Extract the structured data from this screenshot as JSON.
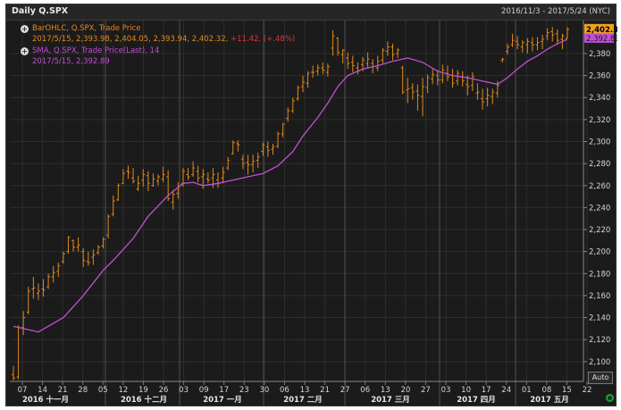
{
  "window": {
    "title": "Daily Q.SPX",
    "date_range": "2016/11/3 - 2017/5/24 (NYC)"
  },
  "legend": {
    "ohlc_title": "BarOHLC, Q.SPX, Trade Price",
    "ohlc_values": "2017/5/15, 2,393.98, 2,404.05, 2,393.94, 2,402.32,",
    "ohlc_change": "+11.42, (+.48%)",
    "sma_title": "SMA, Q.SPX, Trade Price(Last),  14",
    "sma_values": "2017/5/15, 2,392.89"
  },
  "controls": {
    "auto_label": "Auto"
  },
  "colors": {
    "background": "#1b1b1b",
    "bar": "#e08a1e",
    "sma": "#c24fd6",
    "grid": "#2e2e2e",
    "last_price_tag": "#f0a020",
    "sma_price_tag": "#c24fd6"
  },
  "chart_data": {
    "type": "ohlc",
    "title": "Daily Q.SPX",
    "ylim": [
      2082,
      2410
    ],
    "y_ticks": [
      2100,
      2120,
      2140,
      2160,
      2180,
      2200,
      2220,
      2240,
      2260,
      2280,
      2300,
      2320,
      2340,
      2360,
      2380
    ],
    "y_tick_labels": [
      "2,100",
      "2,120",
      "2,140",
      "2,160",
      "2,180",
      "2,200",
      "2,220",
      "2,240",
      "2,260",
      "2,280",
      "2,300",
      "2,320",
      "2,340",
      "2,360",
      "2,380"
    ],
    "x_tick_labels": [
      "07",
      "14",
      "21",
      "28",
      "05",
      "12",
      "19",
      "26",
      "03",
      "09",
      "17",
      "23",
      "30",
      "06",
      "13",
      "21",
      "27",
      "06",
      "13",
      "20",
      "27",
      "03",
      "10",
      "17",
      "24",
      "01",
      "08",
      "15",
      "22"
    ],
    "month_labels": [
      "2016 十一月",
      "2016 十二月",
      "2017 一月",
      "2017 二月",
      "2017 三月",
      "2017 四月",
      "2017 五月"
    ],
    "last_price_label": "2,402.32",
    "last_sma_label": "2,392.89",
    "series": [
      {
        "name": "BarOHLC, Q.SPX, Trade Price",
        "kind": "ohlc",
        "values": [
          [
            2088,
            2096,
            2083,
            2085
          ],
          [
            2086,
            2133,
            2084,
            2131
          ],
          [
            2131,
            2146,
            2124,
            2140
          ],
          [
            2145,
            2168,
            2143,
            2164
          ],
          [
            2166,
            2177,
            2157,
            2167
          ],
          [
            2162,
            2171,
            2156,
            2164
          ],
          [
            2166,
            2175,
            2159,
            2165
          ],
          [
            2168,
            2180,
            2166,
            2177
          ],
          [
            2177,
            2187,
            2172,
            2181
          ],
          [
            2182,
            2190,
            2177,
            2187
          ],
          [
            2191,
            2200,
            2189,
            2198
          ],
          [
            2200,
            2214,
            2198,
            2213
          ],
          [
            2210,
            2211,
            2200,
            2204
          ],
          [
            2204,
            2213,
            2200,
            2206
          ],
          [
            2200,
            2203,
            2186,
            2192
          ],
          [
            2191,
            2200,
            2187,
            2190
          ],
          [
            2195,
            2202,
            2188,
            2197
          ],
          [
            2199,
            2206,
            2197,
            2204
          ],
          [
            2205,
            2213,
            2203,
            2211
          ],
          [
            2215,
            2234,
            2212,
            2232
          ],
          [
            2234,
            2251,
            2232,
            2246
          ],
          [
            2247,
            2262,
            2246,
            2260
          ],
          [
            2262,
            2275,
            2261,
            2271
          ],
          [
            2273,
            2278,
            2266,
            2272
          ],
          [
            2267,
            2276,
            2262,
            2264
          ],
          [
            2257,
            2269,
            2255,
            2262
          ],
          [
            2265,
            2275,
            2259,
            2270
          ],
          [
            2269,
            2273,
            2255,
            2262
          ],
          [
            2260,
            2271,
            2259,
            2266
          ],
          [
            2264,
            2270,
            2260,
            2268
          ],
          [
            2266,
            2277,
            2263,
            2270
          ],
          [
            2268,
            2274,
            2246,
            2248
          ],
          [
            2245,
            2256,
            2238,
            2252
          ],
          [
            2253,
            2263,
            2248,
            2259
          ],
          [
            2262,
            2276,
            2259,
            2273
          ],
          [
            2270,
            2276,
            2265,
            2268
          ],
          [
            2270,
            2282,
            2268,
            2276
          ],
          [
            2273,
            2278,
            2263,
            2267
          ],
          [
            2268,
            2275,
            2257,
            2270
          ],
          [
            2266,
            2272,
            2262,
            2265
          ],
          [
            2267,
            2276,
            2258,
            2270
          ],
          [
            2265,
            2272,
            2258,
            2262
          ],
          [
            2267,
            2277,
            2262,
            2272
          ],
          [
            2276,
            2286,
            2274,
            2283
          ],
          [
            2289,
            2301,
            2288,
            2299
          ],
          [
            2298,
            2301,
            2291,
            2297
          ],
          [
            2284,
            2288,
            2275,
            2280
          ],
          [
            2281,
            2288,
            2270,
            2279
          ],
          [
            2279,
            2288,
            2272,
            2282
          ],
          [
            2283,
            2290,
            2276,
            2286
          ],
          [
            2291,
            2299,
            2287,
            2297
          ],
          [
            2295,
            2300,
            2286,
            2292
          ],
          [
            2293,
            2298,
            2288,
            2295
          ],
          [
            2296,
            2309,
            2294,
            2307
          ],
          [
            2307,
            2317,
            2304,
            2316
          ],
          [
            2321,
            2331,
            2318,
            2328
          ],
          [
            2328,
            2340,
            2326,
            2337
          ],
          [
            2339,
            2351,
            2337,
            2349
          ],
          [
            2350,
            2360,
            2345,
            2354
          ],
          [
            2353,
            2364,
            2349,
            2362
          ],
          [
            2363,
            2369,
            2358,
            2363
          ],
          [
            2364,
            2370,
            2360,
            2367
          ],
          [
            2367,
            2372,
            2361,
            2365
          ],
          [
            2363,
            2371,
            2359,
            2368
          ],
          [
            2385,
            2401,
            2378,
            2396
          ],
          [
            2394,
            2395,
            2378,
            2381
          ],
          [
            2379,
            2384,
            2371,
            2383
          ],
          [
            2376,
            2381,
            2366,
            2371
          ],
          [
            2372,
            2378,
            2363,
            2369
          ],
          [
            2367,
            2372,
            2361,
            2364
          ],
          [
            2370,
            2377,
            2364,
            2374
          ],
          [
            2371,
            2381,
            2367,
            2375
          ],
          [
            2371,
            2375,
            2362,
            2368
          ],
          [
            2367,
            2378,
            2364,
            2373
          ],
          [
            2374,
            2385,
            2371,
            2383
          ],
          [
            2382,
            2391,
            2378,
            2386
          ],
          [
            2386,
            2389,
            2374,
            2379
          ],
          [
            2380,
            2385,
            2376,
            2383
          ],
          [
            2367,
            2369,
            2343,
            2345
          ],
          [
            2347,
            2358,
            2335,
            2348
          ],
          [
            2349,
            2353,
            2338,
            2345
          ],
          [
            2346,
            2352,
            2328,
            2342
          ],
          [
            2341,
            2358,
            2323,
            2350
          ],
          [
            2349,
            2361,
            2344,
            2358
          ],
          [
            2357,
            2366,
            2352,
            2361
          ],
          [
            2360,
            2365,
            2351,
            2356
          ],
          [
            2356,
            2370,
            2353,
            2365
          ],
          [
            2362,
            2369,
            2355,
            2359
          ],
          [
            2360,
            2366,
            2349,
            2353
          ],
          [
            2355,
            2365,
            2351,
            2362
          ],
          [
            2359,
            2364,
            2350,
            2355
          ],
          [
            2352,
            2360,
            2342,
            2350
          ],
          [
            2351,
            2363,
            2346,
            2359
          ],
          [
            2344,
            2353,
            2338,
            2345
          ],
          [
            2339,
            2348,
            2329,
            2336
          ],
          [
            2339,
            2349,
            2332,
            2342
          ],
          [
            2341,
            2348,
            2334,
            2345
          ],
          [
            2344,
            2355,
            2340,
            2351
          ],
          [
            2374,
            2376,
            2372,
            2375
          ],
          [
            2382,
            2389,
            2379,
            2386
          ],
          [
            2388,
            2398,
            2386,
            2392
          ],
          [
            2391,
            2396,
            2384,
            2388
          ],
          [
            2386,
            2392,
            2381,
            2390
          ],
          [
            2388,
            2394,
            2380,
            2391
          ],
          [
            2390,
            2395,
            2382,
            2388
          ],
          [
            2388,
            2395,
            2383,
            2390
          ],
          [
            2391,
            2397,
            2384,
            2393
          ],
          [
            2396,
            2403,
            2392,
            2399
          ],
          [
            2400,
            2404,
            2391,
            2397
          ],
          [
            2398,
            2402,
            2388,
            2392
          ],
          [
            2393,
            2398,
            2384,
            2396
          ],
          [
            2394,
            2404,
            2394,
            2402
          ]
        ]
      },
      {
        "name": "SMA, Q.SPX, Trade Price(Last),  14",
        "kind": "line",
        "values": [
          [
            0,
            2132
          ],
          [
            5,
            2127
          ],
          [
            10,
            2140
          ],
          [
            14,
            2160
          ],
          [
            18,
            2183
          ],
          [
            20,
            2192
          ],
          [
            24,
            2212
          ],
          [
            27,
            2232
          ],
          [
            31,
            2251
          ],
          [
            34,
            2262
          ],
          [
            36,
            2263
          ],
          [
            38,
            2260
          ],
          [
            41,
            2262
          ],
          [
            44,
            2265
          ],
          [
            47,
            2268
          ],
          [
            50,
            2271
          ],
          [
            53,
            2278
          ],
          [
            56,
            2291
          ],
          [
            58,
            2305
          ],
          [
            61,
            2322
          ],
          [
            63,
            2335
          ],
          [
            65,
            2350
          ],
          [
            67,
            2360
          ],
          [
            70,
            2366
          ],
          [
            73,
            2369
          ],
          [
            76,
            2373
          ],
          [
            79,
            2376
          ],
          [
            82,
            2372
          ],
          [
            85,
            2364
          ],
          [
            88,
            2360
          ],
          [
            91,
            2358
          ],
          [
            94,
            2355
          ],
          [
            97,
            2352
          ],
          [
            99,
            2358
          ],
          [
            101,
            2366
          ],
          [
            103,
            2373
          ],
          [
            105,
            2378
          ],
          [
            107,
            2384
          ],
          [
            109,
            2389
          ],
          [
            111,
            2393
          ]
        ]
      }
    ]
  }
}
